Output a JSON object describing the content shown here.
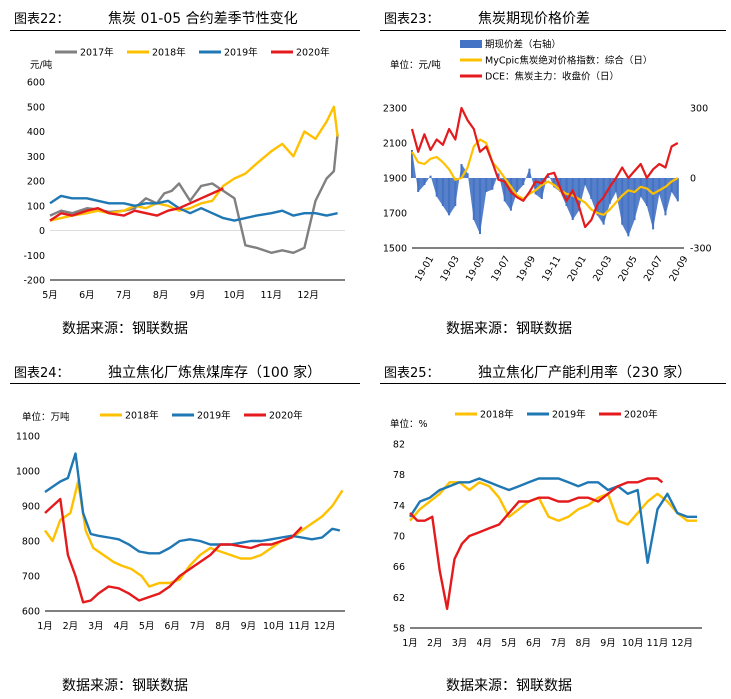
{
  "sources": {
    "c22": "数据来源：钢联数据",
    "c23": "数据来源：钢联数据",
    "c24": "数据来源：钢联数据",
    "c25": "数据来源：钢联数据"
  },
  "chart_data": [
    {
      "id": "c22",
      "type": "line",
      "label": "图表22：",
      "title": "焦炭 01-05 合约差季节性变化",
      "unit": "元/吨",
      "ylim": [
        -200,
        600
      ],
      "yticks": [
        -200,
        -100,
        0,
        100,
        200,
        300,
        400,
        500,
        600
      ],
      "xticks": [
        "5月",
        "6月",
        "7月",
        "8月",
        "9月",
        "10月",
        "11月",
        "12月"
      ],
      "xlim": [
        0,
        8
      ],
      "series": [
        {
          "name": "2017年",
          "color": "#808080",
          "x": [
            0,
            0.3,
            0.6,
            1,
            1.3,
            1.6,
            2,
            2.3,
            2.6,
            2.9,
            3.1,
            3.3,
            3.5,
            3.8,
            4.1,
            4.4,
            4.7,
            5,
            5.3,
            5.6,
            6,
            6.3,
            6.6,
            6.9,
            7.2,
            7.5,
            7.7,
            7.8
          ],
          "y": [
            60,
            80,
            70,
            90,
            85,
            75,
            80,
            90,
            130,
            110,
            150,
            160,
            190,
            120,
            180,
            190,
            160,
            130,
            -60,
            -70,
            -90,
            -80,
            -90,
            -70,
            120,
            210,
            240,
            390
          ]
        },
        {
          "name": "2018年",
          "color": "#FFC000",
          "x": [
            0,
            0.3,
            0.6,
            1,
            1.3,
            1.6,
            2,
            2.3,
            2.6,
            2.9,
            3.2,
            3.5,
            3.8,
            4.1,
            4.4,
            4.7,
            5,
            5.3,
            5.6,
            6,
            6.3,
            6.6,
            6.9,
            7.2,
            7.5,
            7.7,
            7.8
          ],
          "y": [
            40,
            50,
            60,
            70,
            80,
            70,
            80,
            100,
            90,
            110,
            100,
            80,
            90,
            110,
            120,
            180,
            210,
            230,
            270,
            320,
            350,
            300,
            400,
            370,
            440,
            500,
            380
          ]
        },
        {
          "name": "2019年",
          "color": "#1F77B4",
          "x": [
            0,
            0.3,
            0.6,
            1,
            1.3,
            1.6,
            2,
            2.3,
            2.6,
            2.9,
            3.2,
            3.5,
            3.8,
            4.1,
            4.4,
            4.7,
            5,
            5.3,
            5.6,
            6,
            6.3,
            6.6,
            6.9,
            7.2,
            7.5,
            7.8
          ],
          "y": [
            110,
            140,
            130,
            130,
            120,
            110,
            110,
            100,
            110,
            110,
            120,
            90,
            70,
            90,
            70,
            50,
            40,
            50,
            60,
            70,
            80,
            60,
            70,
            70,
            60,
            70
          ]
        },
        {
          "name": "2020年",
          "color": "#E41A1C",
          "x": [
            0,
            0.3,
            0.6,
            1,
            1.3,
            1.6,
            2,
            2.3,
            2.6,
            2.9,
            3.2,
            3.5,
            3.8,
            4.1,
            4.4,
            4.7
          ],
          "y": [
            40,
            70,
            60,
            80,
            90,
            70,
            60,
            80,
            70,
            60,
            80,
            90,
            110,
            130,
            150,
            170
          ]
        }
      ]
    },
    {
      "id": "c23",
      "type": "line",
      "label": "图表23：",
      "title": "焦炭期现价格价差",
      "unit": "单位：元/吨",
      "ylim": [
        1500,
        2300
      ],
      "yticks": [
        1500,
        1700,
        1900,
        2100,
        2300
      ],
      "y2lim": [
        -300,
        300
      ],
      "y2ticks": [
        -300,
        0,
        300
      ],
      "xticks": [
        "19-01",
        "19-03",
        "19-05",
        "19-07",
        "19-09",
        "19-11",
        "20-01",
        "20-03",
        "20-05",
        "20-07",
        "20-09"
      ],
      "xlim": [
        0,
        22
      ],
      "series": [
        {
          "name": "期现价差（右轴）",
          "color": "#4472C4",
          "kind": "bar",
          "axis": "right",
          "x": [
            0,
            0.5,
            1,
            1.5,
            2,
            2.5,
            3,
            3.5,
            4,
            4.5,
            5,
            5.5,
            6,
            6.5,
            7,
            7.5,
            8,
            8.5,
            9,
            9.5,
            10,
            10.5,
            11,
            11.5,
            12,
            12.5,
            13,
            13.5,
            14,
            14.5,
            15,
            15.5,
            16,
            16.5,
            17,
            17.5,
            18,
            18.5,
            19,
            19.5,
            20,
            20.5,
            21,
            21.5
          ],
          "y": [
            120,
            -60,
            -30,
            10,
            -80,
            -120,
            -160,
            -120,
            60,
            20,
            -180,
            -240,
            -60,
            -50,
            20,
            -100,
            -140,
            -60,
            -30,
            40,
            -70,
            -90,
            20,
            -40,
            -60,
            -120,
            -180,
            -140,
            -30,
            -90,
            -160,
            -200,
            -110,
            -60,
            -200,
            -250,
            -180,
            -80,
            -120,
            -220,
            -70,
            -160,
            -60,
            -100
          ]
        },
        {
          "name": "MyCpic焦炭绝对价格指数：综合（日）",
          "color": "#FFC000",
          "axis": "left",
          "x": [
            0,
            0.5,
            1,
            1.5,
            2,
            2.5,
            3,
            3.5,
            4,
            4.5,
            5,
            5.5,
            6,
            6.5,
            7,
            7.5,
            8,
            8.5,
            9,
            9.5,
            10,
            10.5,
            11,
            11.5,
            12,
            12.5,
            13,
            13.5,
            14,
            14.5,
            15,
            15.5,
            16,
            16.5,
            17,
            17.5,
            18,
            18.5,
            19,
            19.5,
            20,
            20.5,
            21,
            21.5
          ],
          "y": [
            2050,
            1990,
            1980,
            2010,
            2020,
            1990,
            1950,
            1890,
            1900,
            1960,
            2080,
            2120,
            2100,
            1990,
            1950,
            1900,
            1850,
            1800,
            1780,
            1810,
            1830,
            1860,
            1880,
            1860,
            1830,
            1810,
            1800,
            1780,
            1760,
            1720,
            1700,
            1690,
            1720,
            1760,
            1800,
            1830,
            1820,
            1850,
            1840,
            1810,
            1830,
            1850,
            1880,
            1900
          ]
        },
        {
          "name": "DCE：焦炭主力：收盘价（日）",
          "color": "#E41A1C",
          "axis": "left",
          "x": [
            0,
            0.5,
            1,
            1.5,
            2,
            2.5,
            3,
            3.5,
            4,
            4.5,
            5,
            5.5,
            6,
            6.5,
            7,
            7.5,
            8,
            8.5,
            9,
            9.5,
            10,
            10.5,
            11,
            11.5,
            12,
            12.5,
            13,
            13.5,
            14,
            14.5,
            15,
            15.5,
            16,
            16.5,
            17,
            17.5,
            18,
            18.5,
            19,
            19.5,
            20,
            20.5,
            21,
            21.5
          ],
          "y": [
            2180,
            2050,
            2150,
            2060,
            2120,
            2090,
            2180,
            2120,
            2300,
            2230,
            2180,
            2050,
            2080,
            1990,
            1890,
            1880,
            1820,
            1790,
            1770,
            1820,
            1880,
            1870,
            1920,
            1930,
            1840,
            1770,
            1830,
            1740,
            1620,
            1660,
            1750,
            1790,
            1850,
            1900,
            1960,
            1900,
            1940,
            1980,
            1900,
            1950,
            1980,
            1960,
            2080,
            2100
          ]
        }
      ]
    },
    {
      "id": "c24",
      "type": "line",
      "label": "图表24：",
      "title": "独立焦化厂炼焦煤库存（100 家）",
      "unit": "单位：万吨",
      "ylim": [
        600,
        1100
      ],
      "yticks": [
        600,
        700,
        800,
        900,
        1000,
        1100
      ],
      "xticks": [
        "1月",
        "2月",
        "3月",
        "4月",
        "5月",
        "6月",
        "7月",
        "8月",
        "9月",
        "10月",
        "11月",
        "12月"
      ],
      "xlim": [
        0,
        11.8
      ],
      "series": [
        {
          "name": "2018年",
          "color": "#FFC000",
          "x": [
            0,
            0.3,
            0.6,
            1,
            1.3,
            1.6,
            1.9,
            2.3,
            2.7,
            3,
            3.4,
            3.8,
            4.1,
            4.5,
            4.9,
            5.3,
            5.7,
            6.1,
            6.5,
            6.9,
            7.3,
            7.7,
            8.1,
            8.5,
            8.9,
            9.3,
            9.7,
            10.1,
            10.5,
            10.9,
            11.3,
            11.7
          ],
          "y": [
            830,
            800,
            860,
            880,
            970,
            830,
            780,
            760,
            740,
            730,
            720,
            700,
            670,
            680,
            680,
            690,
            730,
            760,
            780,
            770,
            760,
            750,
            750,
            760,
            780,
            800,
            810,
            830,
            850,
            870,
            900,
            945
          ]
        },
        {
          "name": "2019年",
          "color": "#1F77B4",
          "x": [
            0,
            0.3,
            0.6,
            0.9,
            1.2,
            1.5,
            1.8,
            2.1,
            2.5,
            2.9,
            3.3,
            3.7,
            4.1,
            4.5,
            4.9,
            5.3,
            5.7,
            6.1,
            6.5,
            6.9,
            7.3,
            7.7,
            8.1,
            8.5,
            8.9,
            9.3,
            9.7,
            10.1,
            10.5,
            10.9,
            11.3,
            11.6
          ],
          "y": [
            940,
            955,
            970,
            980,
            1050,
            880,
            820,
            815,
            810,
            805,
            790,
            770,
            765,
            765,
            780,
            800,
            805,
            800,
            790,
            790,
            790,
            795,
            800,
            800,
            805,
            810,
            815,
            810,
            805,
            810,
            835,
            830
          ]
        },
        {
          "name": "2020年",
          "color": "#E41A1C",
          "x": [
            0,
            0.3,
            0.6,
            0.9,
            1.2,
            1.5,
            1.8,
            2.1,
            2.5,
            2.9,
            3.3,
            3.7,
            4.1,
            4.5,
            4.9,
            5.3,
            5.7,
            6.1,
            6.5,
            6.9,
            7.3,
            7.7,
            8.1,
            8.5,
            8.9,
            9.3,
            9.7,
            10.1
          ],
          "y": [
            880,
            900,
            920,
            760,
            700,
            625,
            630,
            650,
            670,
            665,
            650,
            630,
            640,
            650,
            670,
            700,
            720,
            740,
            760,
            790,
            790,
            785,
            780,
            790,
            790,
            800,
            810,
            840
          ]
        }
      ]
    },
    {
      "id": "c25",
      "type": "line",
      "label": "图表25：",
      "title": "独立焦化厂产能利用率（230 家）",
      "unit": "单位：%",
      "ylim": [
        58,
        82
      ],
      "yticks": [
        58,
        62,
        66,
        70,
        74,
        78,
        82
      ],
      "xticks": [
        "1月",
        "2月",
        "3月",
        "4月",
        "5月",
        "6月",
        "7月",
        "8月",
        "9月",
        "10月",
        "11月",
        "12月"
      ],
      "xlim": [
        0,
        11.8
      ],
      "series": [
        {
          "name": "2018年",
          "color": "#FFC000",
          "x": [
            0,
            0.4,
            0.8,
            1.2,
            1.6,
            2,
            2.4,
            2.8,
            3.2,
            3.6,
            4,
            4.4,
            4.8,
            5.2,
            5.6,
            6,
            6.4,
            6.8,
            7.2,
            7.6,
            8,
            8.4,
            8.8,
            9.2,
            9.6,
            10,
            10.4,
            10.8,
            11.2,
            11.6
          ],
          "y": [
            72,
            73.5,
            74.5,
            75.5,
            77,
            77,
            76,
            77,
            76.5,
            75,
            72.5,
            73.5,
            74.5,
            75,
            72.5,
            72,
            72.5,
            73.5,
            74,
            75,
            75.5,
            72,
            71.5,
            73,
            74.5,
            75.5,
            74.5,
            73,
            72,
            72
          ]
        },
        {
          "name": "2019年",
          "color": "#1F77B4",
          "x": [
            0,
            0.4,
            0.8,
            1.2,
            1.6,
            2,
            2.4,
            2.8,
            3.2,
            3.6,
            4,
            4.4,
            4.8,
            5.2,
            5.6,
            6,
            6.4,
            6.8,
            7.2,
            7.6,
            8,
            8.4,
            8.8,
            9.2,
            9.6,
            10,
            10.4,
            10.8,
            11.2,
            11.6
          ],
          "y": [
            72.5,
            74.5,
            75,
            76,
            76.5,
            77,
            77,
            77.5,
            77,
            76.5,
            76,
            76.5,
            77,
            77.5,
            77.5,
            77.5,
            77,
            76.5,
            77,
            77,
            76,
            76.5,
            75.5,
            76,
            66.5,
            73.5,
            75.5,
            73,
            72.5,
            72.5
          ]
        },
        {
          "name": "2020年",
          "color": "#E41A1C",
          "x": [
            0,
            0.3,
            0.6,
            0.9,
            1.2,
            1.5,
            1.8,
            2.1,
            2.4,
            2.8,
            3.2,
            3.6,
            4,
            4.4,
            4.8,
            5.2,
            5.6,
            6,
            6.4,
            6.8,
            7.2,
            7.6,
            8,
            8.4,
            8.8,
            9.2,
            9.6,
            10,
            10.2
          ],
          "y": [
            73,
            72,
            72,
            72.5,
            65.5,
            60.5,
            67,
            69,
            70,
            70.5,
            71,
            71.5,
            73,
            74.5,
            74.5,
            75,
            75,
            74.5,
            74.5,
            75,
            75,
            74.5,
            75.5,
            76.5,
            77,
            77,
            77.5,
            77.5,
            77
          ]
        }
      ]
    }
  ]
}
